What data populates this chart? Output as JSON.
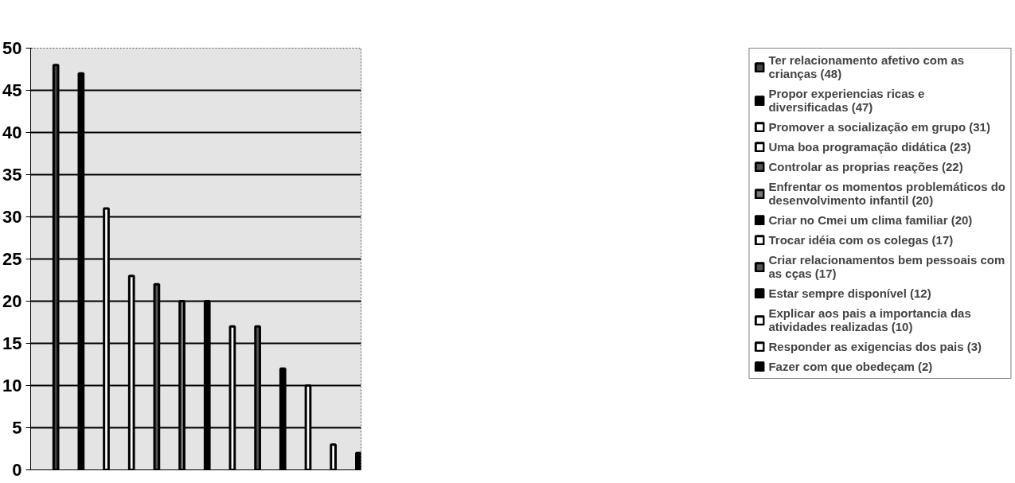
{
  "chart_data": {
    "type": "bar",
    "categories": [
      null,
      null,
      null,
      null,
      null,
      null,
      null,
      null,
      null,
      null,
      null,
      null,
      null
    ],
    "ylim": [
      0,
      50
    ],
    "yticks": [
      0,
      5,
      10,
      15,
      20,
      25,
      30,
      35,
      40,
      45,
      50
    ],
    "grid": "y",
    "legend": "right",
    "series": [
      {
        "name": "Ter relacionamento afetivo com as crianças (48)",
        "color": "#444444",
        "values": [
          48,
          null,
          null,
          null,
          null,
          null,
          null,
          null,
          null,
          null,
          null,
          null,
          null
        ]
      },
      {
        "name": "Propor experiencias ricas e diversificadas (47)",
        "color": "#000000",
        "values": [
          null,
          47,
          null,
          null,
          null,
          null,
          null,
          null,
          null,
          null,
          null,
          null,
          null
        ]
      },
      {
        "name": "Promover a socialização em grupo (31)",
        "color": "#ffffff",
        "values": [
          null,
          null,
          31,
          null,
          null,
          null,
          null,
          null,
          null,
          null,
          null,
          null,
          null
        ]
      },
      {
        "name": "Uma boa programação didática (23)",
        "color": "#ffffff",
        "values": [
          null,
          null,
          null,
          23,
          null,
          null,
          null,
          null,
          null,
          null,
          null,
          null,
          null
        ]
      },
      {
        "name": "Controlar as proprias reações (22)",
        "color": "#555555",
        "values": [
          null,
          null,
          null,
          null,
          22,
          null,
          null,
          null,
          null,
          null,
          null,
          null,
          null
        ]
      },
      {
        "name": "Enfrentar os momentos problemáticos do desenvolvimento infantil (20)",
        "color": "#777777",
        "values": [
          null,
          null,
          null,
          null,
          null,
          20,
          null,
          null,
          null,
          null,
          null,
          null,
          null
        ]
      },
      {
        "name": "Criar no Cmei um clima familiar (20)",
        "color": "#000000",
        "values": [
          null,
          null,
          null,
          null,
          null,
          null,
          20,
          null,
          null,
          null,
          null,
          null,
          null
        ]
      },
      {
        "name": "Trocar idéia com os colegas (17)",
        "color": "#ffffff",
        "values": [
          null,
          null,
          null,
          null,
          null,
          null,
          null,
          17,
          null,
          null,
          null,
          null,
          null
        ]
      },
      {
        "name": "Criar relacionamentos bem pessoais com as cças (17)",
        "color": "#555555",
        "values": [
          null,
          null,
          null,
          null,
          null,
          null,
          null,
          null,
          17,
          null,
          null,
          null,
          null
        ]
      },
      {
        "name": "Estar sempre disponível (12)",
        "color": "#000000",
        "values": [
          null,
          null,
          null,
          null,
          null,
          null,
          null,
          null,
          null,
          12,
          null,
          null,
          null
        ]
      },
      {
        "name": "Explicar aos pais a importancia das atividades realizadas (10)",
        "color": "#ffffff",
        "values": [
          null,
          null,
          null,
          null,
          null,
          null,
          null,
          null,
          null,
          null,
          10,
          null,
          null
        ]
      },
      {
        "name": "Responder as exigencias dos pais (3)",
        "color": "#ffffff",
        "values": [
          null,
          null,
          null,
          null,
          null,
          null,
          null,
          null,
          null,
          null,
          null,
          3,
          null
        ]
      },
      {
        "name": "Fazer com que obedeçam (2)",
        "color": "#000000",
        "values": [
          null,
          null,
          null,
          null,
          null,
          null,
          null,
          null,
          null,
          null,
          null,
          null,
          2
        ]
      }
    ]
  }
}
